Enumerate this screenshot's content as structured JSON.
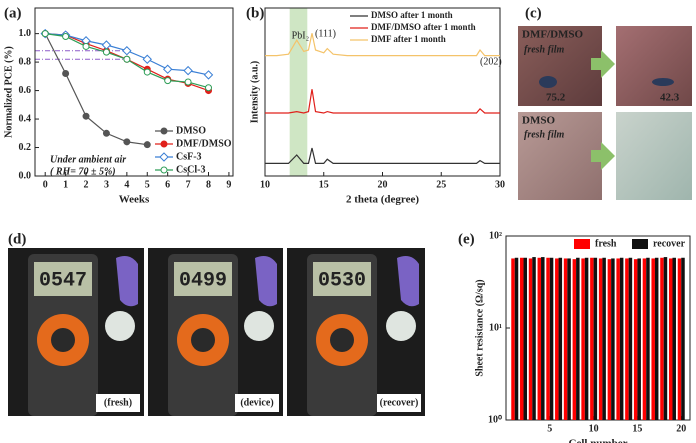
{
  "chart_data": [
    {
      "type": "line",
      "panel_label": "(a)",
      "x_label": "Weeks",
      "y_label": "Normalized PCE (%)",
      "x": [
        0,
        1,
        2,
        3,
        4,
        5,
        6,
        7,
        8
      ],
      "series": [
        {
          "name": "DMSO",
          "color": "#555555",
          "marker": "circle",
          "filled": true,
          "values": [
            1.0,
            0.72,
            0.42,
            0.3,
            0.24,
            0.22,
            null,
            null,
            null
          ]
        },
        {
          "name": "DMF/DMSO",
          "color": "#e0201b",
          "marker": "circle",
          "filled": true,
          "values": [
            1.0,
            0.99,
            0.93,
            0.88,
            0.82,
            0.75,
            0.68,
            0.65,
            0.6
          ]
        },
        {
          "name": "CsF-3",
          "color": "#3a7fd5",
          "marker": "diamond",
          "filled": false,
          "values": [
            1.0,
            0.99,
            0.95,
            0.92,
            0.88,
            0.82,
            0.75,
            0.74,
            0.71
          ]
        },
        {
          "name": "CsCl-3",
          "color": "#2e9e57",
          "marker": "circle",
          "filled": false,
          "values": [
            1.0,
            0.98,
            0.91,
            0.87,
            0.82,
            0.73,
            0.67,
            0.66,
            0.62
          ]
        }
      ],
      "reference_lines": [
        {
          "value": 0.88,
          "color": "#8e5cc8"
        },
        {
          "value": 0.82,
          "color": "#8e5cc8"
        }
      ],
      "annotations": [
        "Under ambient air",
        "( RH= 70 ± 5%)"
      ],
      "xlim": [
        -0.5,
        9.2
      ],
      "xticks": [
        0,
        1,
        2,
        3,
        4,
        5,
        6,
        7,
        8,
        9
      ],
      "ylim": [
        0,
        1.18
      ],
      "yticks": [
        {
          "value": 0,
          "label": "0.0"
        },
        0.2,
        0.4,
        0.6,
        0.8,
        {
          "value": 1,
          "label": "1.0"
        }
      ],
      "legend": "lower right"
    },
    {
      "type": "line",
      "panel_label": "(b)",
      "x_label": "2 theta (degree)",
      "y_label": "Intensity (a.u.)",
      "x": [
        10,
        11,
        12,
        12.7,
        13.3,
        13.7,
        14,
        14.3,
        15,
        15.3,
        15.8,
        17,
        20,
        23,
        26,
        28,
        28.3,
        28.7,
        30
      ],
      "series": [
        {
          "name": "DMSO after 1 month",
          "color": "#333333",
          "values": [
            0.09,
            0.09,
            0.09,
            0.15,
            0.09,
            0.09,
            0.2,
            0.09,
            0.09,
            0.12,
            0.09,
            0.09,
            0.09,
            0.09,
            0.09,
            0.09,
            0.11,
            0.09,
            0.09
          ]
        },
        {
          "name": "DMF/DMSO after 1 month",
          "color": "#e0201b",
          "values": [
            0.45,
            0.45,
            0.45,
            0.46,
            0.45,
            0.46,
            0.62,
            0.46,
            0.45,
            0.46,
            0.45,
            0.45,
            0.45,
            0.45,
            0.45,
            0.45,
            0.48,
            0.45,
            0.45
          ]
        },
        {
          "name": "DMF after 1 month",
          "color": "#f4c36a",
          "values": [
            0.86,
            0.86,
            0.87,
            0.97,
            0.89,
            0.9,
            1.02,
            0.9,
            0.88,
            0.91,
            0.87,
            0.86,
            0.86,
            0.86,
            0.86,
            0.86,
            0.9,
            0.86,
            0.86
          ]
        }
      ],
      "shade": [
        12.1,
        13.6
      ],
      "shade_label": "PbI₂",
      "annotations": [
        "(111)",
        "(202)"
      ],
      "xlim": [
        10,
        30
      ],
      "xticks": [
        10,
        15,
        20,
        25,
        30
      ],
      "ylim": [
        0,
        1.2
      ],
      "yticks": [],
      "legend": "upper right"
    },
    {
      "type": "bar",
      "panel_label": "(e)",
      "x_label": "Cell number",
      "y_label": "Sheet resistance (Ω/sq)",
      "log": true,
      "x": [
        1,
        2,
        3,
        4,
        5,
        6,
        7,
        8,
        9,
        10,
        11,
        12,
        13,
        14,
        15,
        16,
        17,
        18,
        19,
        20
      ],
      "series": [
        {
          "name": "fresh",
          "color": "#ff0000",
          "values": [
            57,
            58,
            57,
            58,
            58,
            57,
            57,
            56,
            57,
            58,
            57,
            56,
            57,
            57,
            56,
            57,
            57,
            58,
            57,
            57
          ]
        },
        {
          "name": "recover",
          "color": "#111111",
          "values": [
            58,
            58,
            59,
            59,
            58,
            58,
            57,
            58,
            58,
            58,
            58,
            57,
            58,
            58,
            57,
            58,
            58,
            59,
            58,
            58
          ]
        }
      ],
      "xlim": [
        0,
        21
      ],
      "xticks": [
        5,
        10,
        15,
        20
      ],
      "ylim": [
        1,
        100
      ],
      "yticks": [
        {
          "value": 1,
          "label": "10⁰"
        },
        {
          "value": 10,
          "label": "10¹"
        },
        {
          "value": 100,
          "label": "10²"
        }
      ],
      "legend": "upper right"
    }
  ],
  "photos": {
    "c": {
      "panel_label": "(c)",
      "top_title": "DMF/DMSO",
      "top_note": "fresh film",
      "angle_left": "75.2",
      "angle_right": "42.3",
      "bottom_title": "DMSO",
      "bottom_note": "fresh film"
    },
    "d": {
      "panel_label": "(d)",
      "readings": [
        "0547",
        "0499",
        "0530"
      ],
      "captions": [
        "(fresh)",
        "(device)",
        "(recover)"
      ]
    }
  }
}
